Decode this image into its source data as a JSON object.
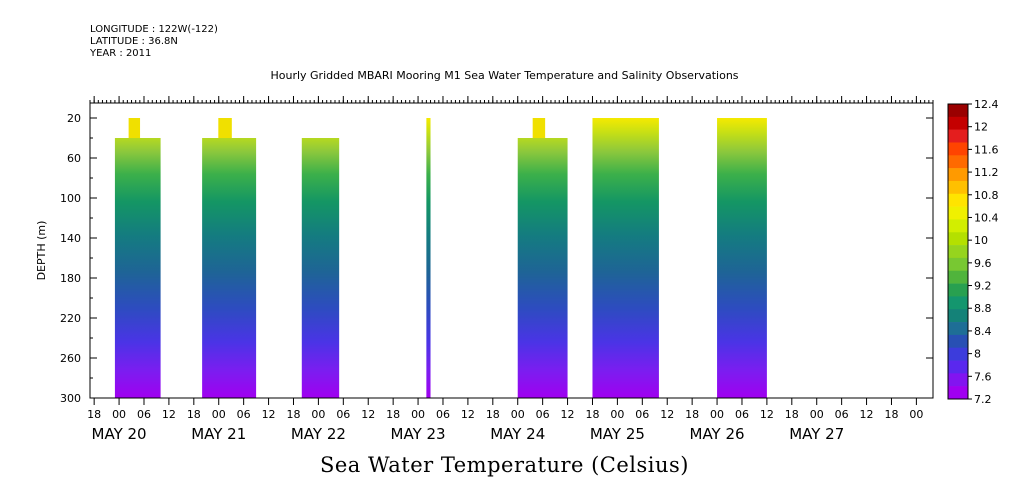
{
  "header": {
    "longitude": "LONGITUDE : 122W(-122)",
    "latitude": "LATITUDE : 36.8N",
    "year": "YEAR : 2011"
  },
  "chart_data": {
    "type": "heatmap",
    "title": "Hourly Gridded MBARI Mooring M1 Sea Water Temperature and Salinity Observations",
    "xlabel": "Sea Water Temperature (Celsius)",
    "ylabel": "DEPTH (m)",
    "x_range_hours_from_may20_00": [
      -7,
      196
    ],
    "y_range_depth": [
      5,
      300
    ],
    "y_ticks": [
      20,
      60,
      100,
      140,
      180,
      220,
      260,
      300
    ],
    "x_hour_ticks": [
      {
        "h": -6,
        "label": "18"
      },
      {
        "h": 0,
        "label": "00"
      },
      {
        "h": 6,
        "label": "06"
      },
      {
        "h": 12,
        "label": "12"
      },
      {
        "h": 18,
        "label": "18"
      },
      {
        "h": 24,
        "label": "00"
      },
      {
        "h": 30,
        "label": "06"
      },
      {
        "h": 36,
        "label": "12"
      },
      {
        "h": 42,
        "label": "18"
      },
      {
        "h": 48,
        "label": "00"
      },
      {
        "h": 54,
        "label": "06"
      },
      {
        "h": 60,
        "label": "12"
      },
      {
        "h": 66,
        "label": "18"
      },
      {
        "h": 72,
        "label": "00"
      },
      {
        "h": 78,
        "label": "06"
      },
      {
        "h": 84,
        "label": "12"
      },
      {
        "h": 90,
        "label": "18"
      },
      {
        "h": 96,
        "label": "00"
      },
      {
        "h": 102,
        "label": "06"
      },
      {
        "h": 108,
        "label": "12"
      },
      {
        "h": 114,
        "label": "18"
      },
      {
        "h": 120,
        "label": "00"
      },
      {
        "h": 126,
        "label": "06"
      },
      {
        "h": 132,
        "label": "12"
      },
      {
        "h": 138,
        "label": "18"
      },
      {
        "h": 144,
        "label": "00"
      },
      {
        "h": 150,
        "label": "06"
      },
      {
        "h": 156,
        "label": "12"
      },
      {
        "h": 162,
        "label": "18"
      },
      {
        "h": 168,
        "label": "00"
      },
      {
        "h": 174,
        "label": "06"
      },
      {
        "h": 180,
        "label": "12"
      },
      {
        "h": 186,
        "label": "18"
      },
      {
        "h": 192,
        "label": "00"
      }
    ],
    "date_labels": [
      {
        "h": 0,
        "label": "MAY 20"
      },
      {
        "h": 24,
        "label": "MAY 21"
      },
      {
        "h": 48,
        "label": "MAY 22"
      },
      {
        "h": 72,
        "label": "MAY 23"
      },
      {
        "h": 96,
        "label": "MAY 24"
      },
      {
        "h": 120,
        "label": "MAY 25"
      },
      {
        "h": 144,
        "label": "MAY 26"
      },
      {
        "h": 168,
        "label": "MAY 27"
      }
    ],
    "data_blocks": [
      {
        "start_h": -1,
        "end_h": 10,
        "top_depth": 40,
        "shallow_top_depth": 20
      },
      {
        "start_h": 20,
        "end_h": 33,
        "top_depth": 40,
        "shallow_top_depth": 20
      },
      {
        "start_h": 44,
        "end_h": 53,
        "top_depth": 40,
        "shallow_top_depth": 40
      },
      {
        "start_h": 74,
        "end_h": 75,
        "top_depth": 20,
        "shallow_top_depth": 20
      },
      {
        "start_h": 96,
        "end_h": 108,
        "top_depth": 40,
        "shallow_top_depth": 20
      },
      {
        "start_h": 114,
        "end_h": 130,
        "top_depth": 20,
        "shallow_top_depth": 20
      },
      {
        "start_h": 144,
        "end_h": 156,
        "top_depth": 20,
        "shallow_top_depth": 20
      }
    ],
    "colorbar": {
      "levels": [
        "12.4",
        "12",
        "11.6",
        "11.2",
        "10.8",
        "10.4",
        "10",
        "9.6",
        "9.2",
        "8.8",
        "8.4",
        "8",
        "7.6",
        "7.2"
      ],
      "colors": [
        "#9a0000",
        "#c40000",
        "#e41e1e",
        "#ff4400",
        "#ff6a00",
        "#ff9a00",
        "#ffc000",
        "#ffe400",
        "#f0f000",
        "#d2ee00",
        "#b4e000",
        "#96d41e",
        "#78c832",
        "#50b43c",
        "#28a050",
        "#14966e",
        "#148278",
        "#1e6e96",
        "#2850b4",
        "#3c3cdc",
        "#5a28ee",
        "#8214f0",
        "#a000f0"
      ]
    }
  }
}
